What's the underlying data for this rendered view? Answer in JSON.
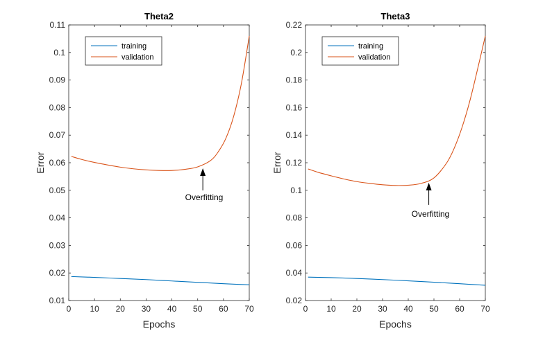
{
  "chart_data": [
    {
      "type": "line",
      "title": "Theta2",
      "xlabel": "Epochs",
      "ylabel": "Error",
      "xlim": [
        0,
        70
      ],
      "ylim": [
        0.01,
        0.11
      ],
      "xticks": [
        "0",
        "10",
        "20",
        "30",
        "40",
        "50",
        "60",
        "70"
      ],
      "yticks": [
        "0.01",
        "0.02",
        "0.03",
        "0.04",
        "0.05",
        "0.06",
        "0.07",
        "0.08",
        "0.09",
        "0.1",
        "0.11"
      ],
      "legend_position": "top-left",
      "series": [
        {
          "name": "training",
          "color": "#0072BD",
          "x": [
            1,
            10,
            20,
            30,
            40,
            50,
            60,
            70
          ],
          "y": [
            0.0187,
            0.0184,
            0.018,
            0.0176,
            0.0171,
            0.0166,
            0.0161,
            0.0157
          ]
        },
        {
          "name": "validation",
          "color": "#D95319",
          "x": [
            1,
            5,
            10,
            15,
            20,
            25,
            30,
            35,
            40,
            45,
            50,
            55,
            58,
            61,
            64,
            67,
            70
          ],
          "y": [
            0.0623,
            0.0612,
            0.0601,
            0.0592,
            0.0584,
            0.0578,
            0.0574,
            0.0572,
            0.0572,
            0.0576,
            0.0585,
            0.0608,
            0.064,
            0.069,
            0.077,
            0.089,
            0.106
          ]
        }
      ],
      "annotation": {
        "text": "Overfitting",
        "x": 52,
        "y": 0.0585
      }
    },
    {
      "type": "line",
      "title": "Theta3",
      "xlabel": "Epochs",
      "ylabel": "Error",
      "xlim": [
        0,
        70
      ],
      "ylim": [
        0.02,
        0.22
      ],
      "xticks": [
        "0",
        "10",
        "20",
        "30",
        "40",
        "50",
        "60",
        "70"
      ],
      "yticks": [
        "0.02",
        "0.04",
        "0.06",
        "0.08",
        "0.1",
        "0.12",
        "0.14",
        "0.16",
        "0.18",
        "0.2",
        "0.22"
      ],
      "legend_position": "top-left",
      "series": [
        {
          "name": "training",
          "color": "#0072BD",
          "x": [
            1,
            10,
            20,
            30,
            40,
            50,
            60,
            70
          ],
          "y": [
            0.037,
            0.0366,
            0.036,
            0.0352,
            0.0343,
            0.0333,
            0.0322,
            0.0311
          ]
        },
        {
          "name": "validation",
          "color": "#D95319",
          "x": [
            1,
            5,
            10,
            15,
            20,
            25,
            30,
            35,
            40,
            45,
            50,
            55,
            58,
            61,
            64,
            67,
            70
          ],
          "y": [
            0.1155,
            0.113,
            0.1105,
            0.1082,
            0.1063,
            0.105,
            0.104,
            0.1035,
            0.1037,
            0.105,
            0.109,
            0.12,
            0.131,
            0.146,
            0.165,
            0.188,
            0.212
          ]
        }
      ],
      "annotation": {
        "text": "Overfitting",
        "x": 48,
        "y": 0.1065
      }
    }
  ]
}
